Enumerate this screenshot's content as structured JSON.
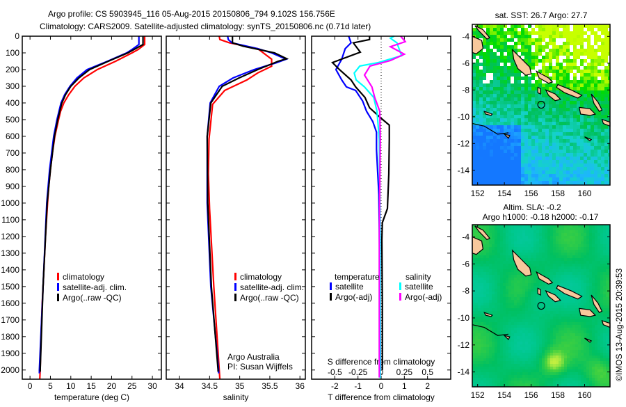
{
  "title_line1": "Argo profile: CS 5903945_116 05-Aug-2015 20150806_794 9.102S 156.756E",
  "title_line2": "Climatology: CARS2009. Satellite-adjusted climatology: synTS_20150806.nc (0.71d later)",
  "credit": "©IMOS 13-Aug-2015 20:39:53",
  "colors": {
    "climatology": "#ff0000",
    "satellite": "#0000ff",
    "argo": "#000000",
    "sal_satellite": "#00ffff",
    "sal_argo": "#ff00ff",
    "land": "#f8c89c"
  },
  "chart_data": [
    {
      "type": "line",
      "id": "temperature",
      "xlabel": "temperature (deg C)",
      "ylabel": "",
      "xlim": [
        -1.9,
        32.2
      ],
      "ylim": [
        2055,
        0
      ],
      "xticks": [
        0,
        5,
        10,
        15,
        20,
        25,
        30
      ],
      "yticks": [
        0,
        100,
        200,
        300,
        400,
        500,
        600,
        700,
        800,
        900,
        1000,
        1100,
        1200,
        1300,
        1400,
        1500,
        1600,
        1700,
        1800,
        1900,
        2000
      ],
      "legend": [
        "climatology",
        "satellite-adj. clim.",
        "Argo(..raw -QC)"
      ],
      "series": [
        {
          "name": "climatology",
          "color": "#ff0000",
          "points": [
            [
              28.1,
              0
            ],
            [
              28.1,
              50
            ],
            [
              26.5,
              80
            ],
            [
              25,
              100
            ],
            [
              21,
              150
            ],
            [
              16.5,
              200
            ],
            [
              13.2,
              250
            ],
            [
              11,
              300
            ],
            [
              9.5,
              350
            ],
            [
              8.3,
              400
            ],
            [
              7.5,
              450
            ],
            [
              7,
              500
            ],
            [
              6.1,
              600
            ],
            [
              5.5,
              700
            ],
            [
              5,
              800
            ],
            [
              4.6,
              900
            ],
            [
              4.3,
              1000
            ],
            [
              3.8,
              1200
            ],
            [
              3.4,
              1400
            ],
            [
              3,
              1600
            ],
            [
              2.7,
              1800
            ],
            [
              2.5,
              2000
            ],
            [
              2.4,
              2055
            ]
          ]
        },
        {
          "name": "satellite-adj. clim.",
          "color": "#0000ff",
          "points": [
            [
              26.7,
              0
            ],
            [
              26.7,
              50
            ],
            [
              25,
              80
            ],
            [
              23.7,
              100
            ],
            [
              19,
              150
            ],
            [
              14,
              200
            ],
            [
              11.5,
              250
            ],
            [
              9.8,
              300
            ],
            [
              8.5,
              350
            ],
            [
              7.6,
              400
            ],
            [
              6.6,
              500
            ],
            [
              5.8,
              600
            ],
            [
              4.8,
              800
            ],
            [
              4.1,
              1000
            ],
            [
              3.2,
              1500
            ],
            [
              2.3,
              2000
            ],
            [
              2.3,
              2020
            ]
          ]
        },
        {
          "name": "Argo(..raw -QC)",
          "color": "#000000",
          "points": [
            [
              27.7,
              0
            ],
            [
              27.7,
              50
            ],
            [
              25.5,
              80
            ],
            [
              24,
              100
            ],
            [
              19.2,
              150
            ],
            [
              14.6,
              200
            ],
            [
              12,
              250
            ],
            [
              10,
              300
            ],
            [
              8.7,
              350
            ],
            [
              7.8,
              400
            ],
            [
              6.8,
              500
            ],
            [
              6,
              600
            ],
            [
              5.5,
              700
            ],
            [
              5,
              800
            ],
            [
              4.2,
              1000
            ],
            [
              3.2,
              1500
            ],
            [
              2.5,
              2000
            ],
            [
              2.5,
              2010
            ]
          ]
        }
      ]
    },
    {
      "type": "line",
      "id": "salinity",
      "xlabel": "salinity",
      "xlim": [
        33.78,
        36.09
      ],
      "ylim": [
        2055,
        0
      ],
      "xticks": [
        34,
        34.5,
        35,
        35.5,
        36
      ],
      "legend": [
        "climatology",
        "satellite-adj. clim.",
        "Argo(..raw -QC)"
      ],
      "annotation": [
        "Argo Australia",
        "PI: Susan Wijffels"
      ],
      "series": [
        {
          "name": "climatology",
          "color": "#ff0000",
          "points": [
            [
              34.66,
              0
            ],
            [
              34.67,
              20
            ],
            [
              34.83,
              40
            ],
            [
              35.3,
              75
            ],
            [
              35.53,
              138
            ],
            [
              35.53,
              180
            ],
            [
              35.3,
              220
            ],
            [
              35.12,
              262
            ],
            [
              34.75,
              325
            ],
            [
              34.55,
              408
            ],
            [
              34.49,
              617
            ],
            [
              34.48,
              825
            ],
            [
              34.5,
              1033
            ],
            [
              34.57,
              1500
            ],
            [
              34.66,
              2000
            ],
            [
              34.67,
              2055
            ]
          ]
        },
        {
          "name": "satellite-adj. clim.",
          "color": "#0000ff",
          "points": [
            [
              34.8,
              0
            ],
            [
              34.81,
              20
            ],
            [
              34.87,
              40
            ],
            [
              35.3,
              75
            ],
            [
              35.53,
              100
            ],
            [
              35.77,
              138
            ],
            [
              35.6,
              160
            ],
            [
              35.24,
              200
            ],
            [
              34.89,
              250
            ],
            [
              34.66,
              300
            ],
            [
              34.51,
              400
            ],
            [
              34.46,
              600
            ],
            [
              34.46,
              1000
            ],
            [
              34.52,
              1500
            ],
            [
              34.65,
              2000
            ],
            [
              34.65,
              2020
            ]
          ]
        },
        {
          "name": "Argo(..raw -QC)",
          "color": "#000000",
          "points": [
            [
              34.88,
              0
            ],
            [
              34.88,
              40
            ],
            [
              35.06,
              60
            ],
            [
              35.58,
              100
            ],
            [
              35.78,
              135
            ],
            [
              35.64,
              150
            ],
            [
              35.3,
              200
            ],
            [
              34.99,
              250
            ],
            [
              34.71,
              300
            ],
            [
              34.52,
              400
            ],
            [
              34.46,
              600
            ],
            [
              34.47,
              1000
            ],
            [
              34.53,
              1500
            ],
            [
              34.64,
              2000
            ],
            [
              34.64,
              2010
            ]
          ]
        }
      ]
    },
    {
      "type": "line",
      "id": "difference",
      "xlabel": "T difference from climatology",
      "x2label": "S difference from climatology",
      "xlim": [
        -3,
        3
      ],
      "x2lim": [
        -0.75,
        0.75
      ],
      "ylim": [
        2055,
        0
      ],
      "xticks": [
        -2,
        -1,
        0,
        1,
        2
      ],
      "x2ticks": [
        -0.5,
        -0.25,
        0,
        0.25,
        0.5
      ],
      "x2ticklabels": [
        "-0.5",
        "-0.25",
        "0",
        "0.25",
        "0.5"
      ],
      "legend_titles": [
        "temperature",
        "salinity"
      ],
      "legend": [
        "satellite",
        "Argo(-adj)",
        "satellite",
        "Argo(-adj)"
      ],
      "series": [
        {
          "name": "T satellite",
          "axis": "T",
          "color": "#0000ff",
          "points": [
            [
              -1.4,
              0
            ],
            [
              -1.3,
              40
            ],
            [
              -1.55,
              75
            ],
            [
              -1.7,
              138
            ],
            [
              -1.95,
              200
            ],
            [
              -1.7,
              262
            ],
            [
              -1.5,
              304
            ],
            [
              -1.1,
              325
            ],
            [
              -0.8,
              388
            ],
            [
              -0.63,
              450
            ],
            [
              -0.36,
              512
            ],
            [
              -0.2,
              575
            ],
            [
              -0.2,
              680
            ],
            [
              -0.1,
              950
            ],
            [
              -0.05,
              1500
            ],
            [
              -0.03,
              2000
            ]
          ]
        },
        {
          "name": "T Argo(-adj)",
          "axis": "T",
          "color": "#000000",
          "points": [
            [
              -0.5,
              0
            ],
            [
              -0.5,
              20
            ],
            [
              -1.2,
              40
            ],
            [
              -0.9,
              96
            ],
            [
              -2.1,
              158
            ],
            [
              -1.8,
              200
            ],
            [
              -1.3,
              262
            ],
            [
              -1.1,
              304
            ],
            [
              -0.7,
              367
            ],
            [
              -0.5,
              429
            ],
            [
              0,
              492
            ],
            [
              0.35,
              533
            ],
            [
              0.35,
              617
            ],
            [
              0.33,
              825
            ],
            [
              0.27,
              1033
            ],
            [
              0.05,
              1117
            ],
            [
              0.03,
              1221
            ],
            [
              0.05,
              1600
            ],
            [
              0.05,
              2000
            ]
          ]
        },
        {
          "name": "S satellite",
          "axis": "S",
          "color": "#00ffff",
          "points": [
            [
              0.14,
              0
            ],
            [
              0.1,
              12
            ],
            [
              0.17,
              40
            ],
            [
              0.22,
              117
            ],
            [
              -0.03,
              158
            ],
            [
              -0.23,
              179
            ],
            [
              -0.29,
              221
            ],
            [
              -0.27,
              262
            ],
            [
              -0.18,
              304
            ],
            [
              -0.08,
              367
            ],
            [
              -0.045,
              450
            ],
            [
              -0.02,
              617
            ],
            [
              -0.01,
              1200
            ],
            [
              -0.01,
              2050
            ]
          ]
        },
        {
          "name": "S Argo(-adj)",
          "axis": "S",
          "color": "#ff00ff",
          "points": [
            [
              0.21,
              0
            ],
            [
              0.26,
              33
            ],
            [
              0.1,
              63
            ],
            [
              0.25,
              108
            ],
            [
              0.1,
              146
            ],
            [
              -0.12,
              179
            ],
            [
              -0.18,
              233
            ],
            [
              -0.1,
              304
            ],
            [
              -0.07,
              367
            ],
            [
              -0.015,
              450
            ],
            [
              -0.01,
              617
            ],
            [
              -0.02,
              1200
            ],
            [
              -0.02,
              2000
            ],
            [
              -0.02,
              2045
            ]
          ]
        }
      ]
    },
    {
      "type": "heatmap",
      "id": "sst-map",
      "title": "sat. SST: 26.7 Argo: 27.7",
      "xlim": [
        151.6,
        161.9
      ],
      "ylim": [
        -15.1,
        -3.1
      ],
      "xticks": [
        152,
        154,
        156,
        158,
        160
      ],
      "yticks": [
        -4,
        -6,
        -8,
        -10,
        -12,
        -14
      ],
      "marker": [
        156.756,
        -9.102
      ]
    },
    {
      "type": "heatmap",
      "id": "sla-map",
      "title": "Altim. SLA: -0.2",
      "subtitle": "Argo h1000: -0.18 h2000: -0.17",
      "xlim": [
        151.6,
        161.9
      ],
      "ylim": [
        -15.1,
        -3.1
      ],
      "xticks": [
        152,
        154,
        156,
        158,
        160
      ],
      "yticks": [
        -4,
        -6,
        -8,
        -10,
        -12,
        -14
      ],
      "marker": [
        156.756,
        -9.102
      ]
    }
  ]
}
